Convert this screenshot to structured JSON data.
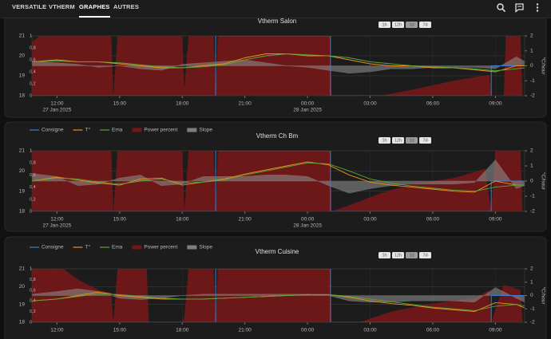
{
  "nav": {
    "tabs": [
      "VERSATILE",
      "VTHERM",
      "GRAPHES",
      "AUTRES"
    ]
  },
  "chart_data": [
    {
      "type": "line",
      "title": "Vtherm Salon",
      "range_buttons": [
        "1h",
        "12h",
        "1d",
        "7d"
      ],
      "xlim": [
        10.8,
        34.4
      ],
      "xticks": [
        {
          "value": 12,
          "label": "12:00"
        },
        {
          "value": 15,
          "label": "15:00"
        },
        {
          "value": 18,
          "label": "18:00"
        },
        {
          "value": 21,
          "label": "21:00"
        },
        {
          "value": 24,
          "label": "00:00"
        },
        {
          "value": 27,
          "label": "03:00"
        },
        {
          "value": 30,
          "label": "06:00"
        },
        {
          "value": 33,
          "label": "09:00"
        }
      ],
      "xdate_ticks": [
        {
          "value": 12,
          "label": "27 Jan 2025"
        },
        {
          "value": 24,
          "label": "28 Jan 2025"
        }
      ],
      "ylim": [
        18,
        21
      ],
      "yticks": [
        18,
        19,
        20,
        21
      ],
      "y2lim": [
        -2,
        2
      ],
      "y2ticks": [
        2,
        1,
        0,
        -1,
        -2
      ],
      "y2label": "°C/hour",
      "y3lim": [
        0,
        1
      ],
      "y3ticks": [
        0,
        {
          "value": 0.2,
          "label": "0,2"
        },
        {
          "value": 0.4,
          "label": "0,4"
        },
        {
          "value": 0.6,
          "label": "0,6"
        },
        {
          "value": 0.8,
          "label": "0,8"
        },
        1
      ],
      "grid": true,
      "series": [
        {
          "name": "Consigne",
          "color": "#3a7fd5",
          "style": "step",
          "axis": "y",
          "x": [
            10.8,
            19.6,
            25.1,
            32.8,
            34.4
          ],
          "values": [
            18,
            21,
            18,
            19.5,
            19.5
          ]
        },
        {
          "name": "T°",
          "color": "#e8921c",
          "style": "line",
          "axis": "y",
          "x": [
            10.8,
            12,
            13,
            14,
            15,
            16,
            17,
            18,
            19,
            20,
            21,
            22,
            23,
            24,
            25,
            26,
            27,
            28,
            29,
            30,
            31,
            32,
            33,
            34,
            34.4
          ],
          "values": [
            19.7,
            19.8,
            19.7,
            19.7,
            19.6,
            19.5,
            19.4,
            19.4,
            19.5,
            19.6,
            19.9,
            20.1,
            20.1,
            20.0,
            20.0,
            19.8,
            19.6,
            19.5,
            19.5,
            19.4,
            19.4,
            19.3,
            19.2,
            19.5,
            19.5
          ]
        },
        {
          "name": "Ema",
          "color": "#5aa63a",
          "style": "line",
          "axis": "y",
          "x": [
            10.8,
            12,
            13,
            14,
            15,
            16,
            17,
            18,
            19,
            20,
            21,
            22,
            23,
            24,
            25,
            26,
            27,
            28,
            29,
            30,
            31,
            32,
            33,
            34,
            34.4
          ],
          "values": [
            19.7,
            19.75,
            19.7,
            19.7,
            19.65,
            19.55,
            19.45,
            19.4,
            19.45,
            19.55,
            19.8,
            20.0,
            20.1,
            20.05,
            20.0,
            19.9,
            19.7,
            19.6,
            19.5,
            19.45,
            19.4,
            19.35,
            19.25,
            19.35,
            19.4
          ]
        },
        {
          "name": "Power percent",
          "color": "#7a1818",
          "style": "area",
          "axis": "y3",
          "x": [
            10.8,
            11.2,
            14.6,
            14.7,
            14.9,
            18.0,
            18.1,
            18.3,
            19.5,
            19.6,
            19.7,
            25.1,
            25.15,
            27.5,
            29,
            31,
            32.7,
            32.8,
            33.4,
            33.5,
            34.2,
            34.3,
            34.4
          ],
          "values": [
            0.9,
            1,
            1,
            0,
            1,
            1,
            0.1,
            1,
            1,
            0.05,
            1,
            1,
            0,
            0,
            0.1,
            0.25,
            0.35,
            0,
            0,
            1,
            1,
            0,
            0
          ]
        },
        {
          "name": "Slope",
          "color": "#8a8a8a",
          "style": "area",
          "axis": "y2",
          "x": [
            10.8,
            12,
            13,
            14,
            15,
            16,
            17,
            18,
            19,
            20,
            21,
            22,
            23,
            24,
            25,
            26,
            27,
            28,
            29,
            30,
            31,
            32,
            33,
            34,
            34.4
          ],
          "values": [
            0.3,
            0.2,
            0.1,
            -0.1,
            0,
            -0.2,
            -0.3,
            0.1,
            0.2,
            0.3,
            0.4,
            0.2,
            0,
            -0.1,
            -0.3,
            -0.5,
            -0.4,
            -0.2,
            -0.2,
            -0.1,
            -0.1,
            -0.1,
            -0.2,
            0.6,
            0.3
          ]
        }
      ]
    },
    {
      "type": "line",
      "title": "Vtherm Ch Bm",
      "range_buttons": [
        "1h",
        "12h",
        "1d",
        "7d"
      ],
      "xlim": [
        10.8,
        34.4
      ],
      "xticks": [
        {
          "value": 12,
          "label": "12:00"
        },
        {
          "value": 15,
          "label": "15:00"
        },
        {
          "value": 18,
          "label": "18:00"
        },
        {
          "value": 21,
          "label": "21:00"
        },
        {
          "value": 24,
          "label": "00:00"
        },
        {
          "value": 27,
          "label": "03:00"
        },
        {
          "value": 30,
          "label": "06:00"
        },
        {
          "value": 33,
          "label": "09:00"
        }
      ],
      "xdate_ticks": [
        {
          "value": 12,
          "label": "27 Jan 2025"
        },
        {
          "value": 24,
          "label": "28 Jan 2025"
        }
      ],
      "ylim": [
        18,
        21
      ],
      "yticks": [
        18,
        19,
        20,
        21
      ],
      "y2lim": [
        -2,
        2
      ],
      "y2ticks": [
        2,
        1,
        0,
        -1,
        -2
      ],
      "y2label": "°C/hour",
      "y3lim": [
        0,
        1
      ],
      "y3ticks": [
        0,
        {
          "value": 0.2,
          "label": "0,2"
        },
        {
          "value": 0.4,
          "label": "0,4"
        },
        {
          "value": 0.6,
          "label": "0,6"
        },
        {
          "value": 0.8,
          "label": "0,8"
        },
        1
      ],
      "grid": true,
      "series": [
        {
          "name": "Consigne",
          "color": "#3a7fd5",
          "style": "step",
          "axis": "y",
          "x": [
            10.8,
            19.6,
            25.1,
            32.8,
            34.4
          ],
          "values": [
            18,
            21,
            18,
            19.5,
            19.5
          ]
        },
        {
          "name": "T°",
          "color": "#e8921c",
          "style": "line",
          "axis": "y",
          "x": [
            10.8,
            12,
            13,
            14,
            15,
            16,
            17,
            18,
            19,
            20,
            21,
            22,
            23,
            24,
            25,
            26,
            27,
            28,
            29,
            30,
            31,
            32,
            33,
            34,
            34.4
          ],
          "values": [
            19.5,
            19.7,
            19.55,
            19.4,
            19.3,
            19.6,
            19.65,
            19.3,
            19.45,
            19.6,
            19.85,
            20.05,
            20.25,
            20.45,
            20.3,
            19.8,
            19.45,
            19.3,
            19.2,
            19.1,
            19.0,
            18.95,
            19.5,
            19.3,
            19.3
          ]
        },
        {
          "name": "Ema",
          "color": "#5aa63a",
          "style": "line",
          "axis": "y",
          "x": [
            10.8,
            12,
            13,
            14,
            15,
            16,
            17,
            18,
            19,
            20,
            21,
            22,
            23,
            24,
            25,
            26,
            27,
            28,
            29,
            30,
            31,
            32,
            33,
            34,
            34.4
          ],
          "values": [
            19.5,
            19.65,
            19.6,
            19.45,
            19.35,
            19.5,
            19.6,
            19.4,
            19.45,
            19.55,
            19.8,
            20.0,
            20.2,
            20.4,
            20.35,
            20.0,
            19.6,
            19.4,
            19.25,
            19.15,
            19.05,
            19.0,
            19.2,
            19.3,
            19.3
          ]
        },
        {
          "name": "Power percent",
          "color": "#7a1818",
          "style": "area",
          "axis": "y3",
          "x": [
            10.8,
            14.6,
            14.7,
            14.9,
            18.0,
            18.1,
            18.3,
            19.5,
            19.6,
            19.7,
            25.1,
            25.15,
            26,
            27.5,
            29,
            31,
            32.5,
            32.8,
            33.0,
            34.2,
            34.3,
            34.4
          ],
          "values": [
            1,
            1,
            0,
            1,
            1,
            0,
            1,
            1,
            0,
            1,
            1,
            0,
            0.1,
            0.3,
            0.45,
            0.55,
            0.7,
            0,
            1,
            1,
            0,
            0
          ]
        },
        {
          "name": "Slope",
          "color": "#8a8a8a",
          "style": "area",
          "axis": "y2",
          "x": [
            10.8,
            12,
            13,
            14,
            15,
            16,
            17,
            18,
            19,
            20,
            21,
            22,
            23,
            24,
            25,
            26,
            27,
            28,
            29,
            30,
            31,
            32,
            33,
            34,
            34.4
          ],
          "values": [
            0.5,
            0.3,
            -0.3,
            -0.2,
            0.2,
            0.4,
            -0.3,
            -0.2,
            0.3,
            0.3,
            0.3,
            0.4,
            0.4,
            0.3,
            -0.3,
            -0.8,
            -0.5,
            -0.3,
            -0.2,
            -0.2,
            -0.2,
            -0.1,
            1.4,
            -0.5,
            -0.3
          ]
        }
      ]
    },
    {
      "type": "line",
      "title": "Vtherm Cuisine",
      "range_buttons": [
        "1h",
        "12h",
        "1d",
        "7d"
      ],
      "xlim": [
        10.8,
        34.4
      ],
      "xticks": [
        {
          "value": 12,
          "label": "12:00"
        },
        {
          "value": 15,
          "label": "15:00"
        },
        {
          "value": 18,
          "label": "18:00"
        },
        {
          "value": 21,
          "label": "21:00"
        },
        {
          "value": 24,
          "label": "00:00"
        },
        {
          "value": 27,
          "label": "03:00"
        },
        {
          "value": 30,
          "label": "06:00"
        },
        {
          "value": 33,
          "label": "09:00"
        }
      ],
      "ylim": [
        18,
        21
      ],
      "yticks": [
        18,
        19,
        20,
        21
      ],
      "y2lim": [
        -2,
        2
      ],
      "y2ticks": [
        2,
        1,
        0,
        -1,
        -2
      ],
      "y2label": "°C/hour",
      "y3lim": [
        0,
        1
      ],
      "y3ticks": [
        0,
        {
          "value": 0.2,
          "label": "0,2"
        },
        {
          "value": 0.4,
          "label": "0,4"
        },
        {
          "value": 0.6,
          "label": "0,6"
        },
        {
          "value": 0.8,
          "label": "0,8"
        },
        1
      ],
      "grid": true,
      "series": [
        {
          "name": "Consigne",
          "color": "#3a7fd5",
          "style": "step",
          "axis": "y",
          "x": [
            10.8,
            19.6,
            25.1,
            32.8,
            34.4
          ],
          "values": [
            18,
            21,
            18,
            19.5,
            19.5
          ]
        },
        {
          "name": "T°",
          "color": "#e8921c",
          "style": "line",
          "axis": "y",
          "x": [
            10.8,
            12,
            13,
            14,
            15,
            16,
            17,
            18,
            19,
            20,
            21,
            22,
            23,
            24,
            25,
            26,
            27,
            28,
            29,
            30,
            31,
            32,
            33,
            34,
            34.4
          ],
          "values": [
            19.2,
            19.3,
            19.5,
            19.7,
            19.5,
            19.4,
            19.3,
            19.3,
            19.3,
            19.35,
            19.4,
            19.45,
            19.5,
            19.55,
            19.55,
            19.4,
            19.2,
            19.05,
            18.95,
            18.8,
            18.7,
            18.6,
            19.1,
            19.0,
            18.8
          ]
        },
        {
          "name": "Ema",
          "color": "#5aa63a",
          "style": "line",
          "axis": "y",
          "x": [
            10.8,
            12,
            13,
            14,
            15,
            16,
            17,
            18,
            19,
            20,
            21,
            22,
            23,
            24,
            25,
            26,
            27,
            28,
            29,
            30,
            31,
            32,
            33,
            34,
            34.4
          ],
          "values": [
            19.2,
            19.3,
            19.45,
            19.6,
            19.55,
            19.45,
            19.35,
            19.3,
            19.3,
            19.35,
            19.4,
            19.45,
            19.5,
            19.55,
            19.55,
            19.45,
            19.3,
            19.15,
            19.0,
            18.85,
            18.75,
            18.65,
            18.9,
            19.0,
            18.9
          ]
        },
        {
          "name": "Power percent",
          "color": "#7a1818",
          "style": "area",
          "axis": "y3",
          "x": [
            10.8,
            12.3,
            13,
            14,
            14.6,
            14.7,
            14.9,
            16.3,
            16.4,
            18.0,
            18.1,
            18.3,
            19.5,
            19.6,
            19.7,
            25.1,
            25.15,
            26.5,
            28,
            30,
            32,
            32.7,
            32.8,
            33.4,
            34.2,
            34.3,
            34.4
          ],
          "values": [
            1,
            1,
            0.8,
            0.6,
            0.55,
            0,
            1,
            1,
            0,
            0,
            0.1,
            1,
            1,
            0.05,
            1,
            1,
            0,
            0,
            0.2,
            0.35,
            0.45,
            0.6,
            0,
            0.7,
            0.6,
            0,
            0
          ]
        },
        {
          "name": "Slope",
          "color": "#8a8a8a",
          "style": "area",
          "axis": "y2",
          "x": [
            10.8,
            12,
            13,
            14,
            15,
            16,
            17,
            18,
            19,
            20,
            21,
            22,
            23,
            24,
            25,
            26,
            27,
            28,
            29,
            30,
            31,
            32,
            33,
            34,
            34.4
          ],
          "values": [
            0.1,
            0.3,
            0.5,
            0.3,
            -0.2,
            -0.3,
            -0.2,
            0,
            0.1,
            0.1,
            0.1,
            0.1,
            0.1,
            0.1,
            0,
            -0.4,
            -0.5,
            -0.5,
            -0.4,
            -0.4,
            -0.4,
            -0.5,
            0.6,
            -0.2,
            -0.5
          ]
        }
      ]
    }
  ]
}
